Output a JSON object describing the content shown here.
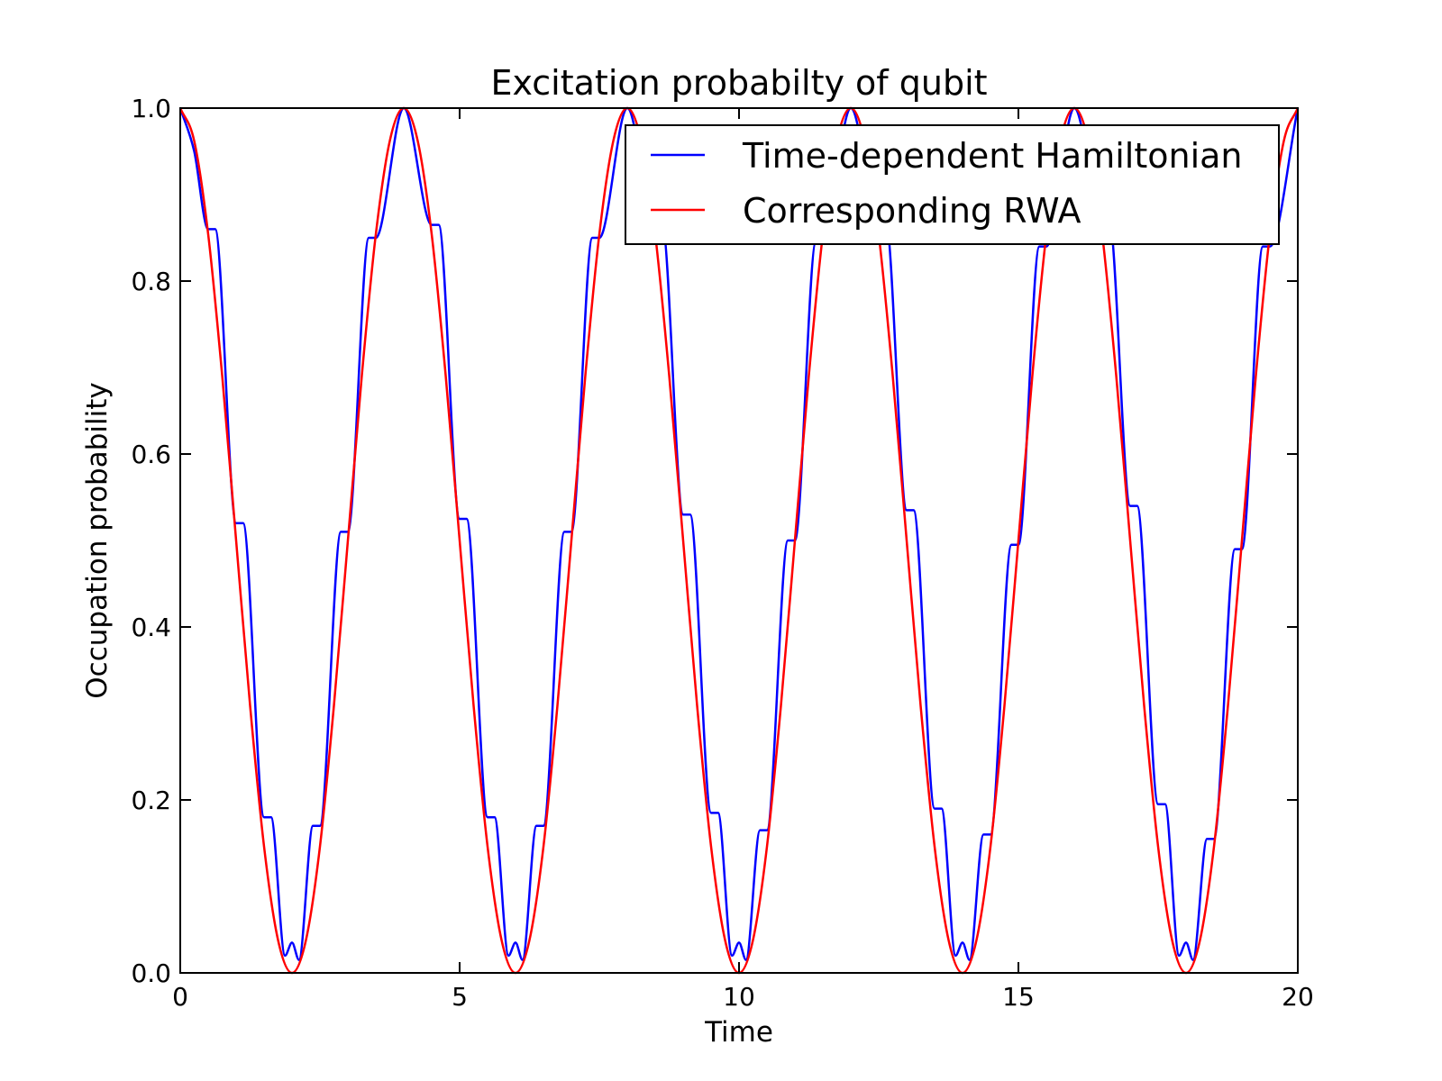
{
  "chart_data": {
    "type": "line",
    "title": "Excitation probabilty of qubit",
    "xlabel": "Time",
    "ylabel": "Occupation probability",
    "xlim": [
      0,
      20
    ],
    "ylim": [
      0,
      1.0
    ],
    "xticks": [
      0,
      5,
      10,
      15,
      20
    ],
    "xtick_labels": [
      "0",
      "5",
      "10",
      "15",
      "20"
    ],
    "yticks": [
      0.0,
      0.2,
      0.4,
      0.6,
      0.8,
      1.0
    ],
    "ytick_labels": [
      "0.0",
      "0.2",
      "0.4",
      "0.6",
      "0.8",
      "1.0"
    ],
    "grid": false,
    "legend_position": "top-right",
    "series": [
      {
        "name": "Time-dependent Hamiltonian",
        "color": "#0000ff",
        "x": [
          0,
          0.25,
          0.5,
          0.625,
          1.0,
          1.125,
          1.5,
          1.625,
          1.875,
          2.0,
          2.125,
          2.375,
          2.5,
          2.875,
          3.0,
          3.375,
          3.5,
          4.0,
          4.5,
          4.625,
          5.0,
          5.125,
          5.5,
          5.625,
          5.875,
          6.0,
          6.125,
          6.375,
          6.5,
          6.875,
          7.0,
          7.375,
          7.5,
          8.0,
          8.5,
          8.625,
          9.0,
          9.125,
          9.5,
          9.625,
          9.875,
          10.0,
          10.125,
          10.375,
          10.5,
          10.875,
          11.0,
          11.375,
          11.5,
          12.0,
          12.5,
          12.625,
          13.0,
          13.125,
          13.5,
          13.625,
          13.875,
          14.0,
          14.125,
          14.375,
          14.5,
          14.875,
          15.0,
          15.375,
          15.5,
          16.0,
          16.5,
          16.625,
          17.0,
          17.125,
          17.5,
          17.625,
          17.875,
          18.0,
          18.125,
          18.375,
          18.5,
          18.875,
          19.0,
          19.375,
          19.5,
          20.0
        ],
        "y": [
          1.0,
          0.95,
          0.86,
          0.86,
          0.52,
          0.52,
          0.18,
          0.18,
          0.02,
          0.035,
          0.015,
          0.17,
          0.17,
          0.51,
          0.51,
          0.85,
          0.85,
          1.0,
          0.865,
          0.865,
          0.525,
          0.525,
          0.18,
          0.18,
          0.02,
          0.035,
          0.015,
          0.17,
          0.17,
          0.51,
          0.51,
          0.85,
          0.85,
          1.0,
          0.865,
          0.865,
          0.53,
          0.53,
          0.185,
          0.185,
          0.02,
          0.035,
          0.015,
          0.165,
          0.165,
          0.5,
          0.5,
          0.845,
          0.845,
          1.0,
          0.87,
          0.87,
          0.535,
          0.535,
          0.19,
          0.19,
          0.02,
          0.035,
          0.015,
          0.16,
          0.16,
          0.495,
          0.495,
          0.84,
          0.84,
          1.0,
          0.87,
          0.87,
          0.54,
          0.54,
          0.195,
          0.195,
          0.02,
          0.035,
          0.015,
          0.155,
          0.155,
          0.49,
          0.49,
          0.84,
          0.84,
          1.0
        ]
      },
      {
        "name": "Corresponding RWA",
        "color": "#ff0000",
        "x": [
          0,
          0.25,
          0.5,
          0.75,
          1.0,
          1.25,
          1.5,
          1.75,
          2.0,
          2.25,
          2.5,
          2.75,
          3.0,
          3.25,
          3.5,
          3.75,
          4.0,
          4.25,
          4.5,
          4.75,
          5.0,
          5.25,
          5.5,
          5.75,
          6.0,
          6.25,
          6.5,
          6.75,
          7.0,
          7.25,
          7.5,
          7.75,
          8.0,
          8.25,
          8.5,
          8.75,
          9.0,
          9.25,
          9.5,
          9.75,
          10.0,
          10.25,
          10.5,
          10.75,
          11.0,
          11.25,
          11.5,
          11.75,
          12.0,
          12.25,
          12.5,
          12.75,
          13.0,
          13.25,
          13.5,
          13.75,
          14.0,
          14.25,
          14.5,
          14.75,
          15.0,
          15.25,
          15.5,
          15.75,
          16.0,
          16.25,
          16.5,
          16.75,
          17.0,
          17.25,
          17.5,
          17.75,
          18.0,
          18.25,
          18.5,
          18.75,
          19.0,
          19.25,
          19.5,
          19.75,
          20.0
        ],
        "y": [
          1.0,
          0.962,
          0.854,
          0.691,
          0.5,
          0.309,
          0.146,
          0.038,
          0.0,
          0.038,
          0.146,
          0.309,
          0.5,
          0.691,
          0.854,
          0.962,
          1.0,
          0.962,
          0.854,
          0.691,
          0.5,
          0.309,
          0.146,
          0.038,
          0.0,
          0.038,
          0.146,
          0.309,
          0.5,
          0.691,
          0.854,
          0.962,
          1.0,
          0.962,
          0.854,
          0.691,
          0.5,
          0.309,
          0.146,
          0.038,
          0.0,
          0.038,
          0.146,
          0.309,
          0.5,
          0.691,
          0.854,
          0.962,
          1.0,
          0.962,
          0.854,
          0.691,
          0.5,
          0.309,
          0.146,
          0.038,
          0.0,
          0.038,
          0.146,
          0.309,
          0.5,
          0.691,
          0.854,
          0.962,
          1.0,
          0.962,
          0.854,
          0.691,
          0.5,
          0.309,
          0.146,
          0.038,
          0.0,
          0.038,
          0.146,
          0.309,
          0.5,
          0.691,
          0.854,
          0.962,
          1.0
        ]
      }
    ]
  }
}
